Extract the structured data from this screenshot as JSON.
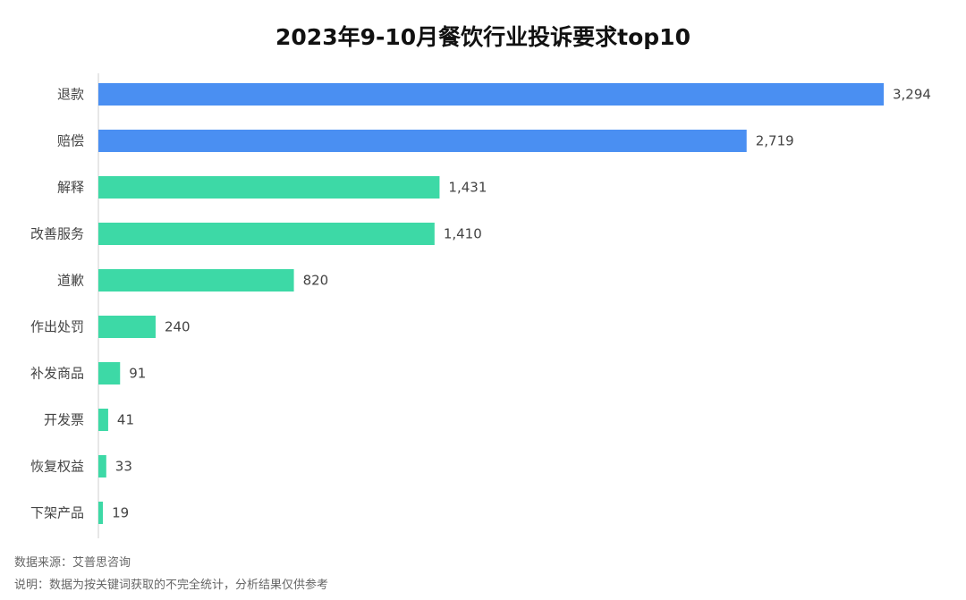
{
  "chart_data": {
    "type": "bar",
    "orientation": "horizontal",
    "title": "2023年9-10月餐饮行业投诉要求top10",
    "categories": [
      "退款",
      "赔偿",
      "解释",
      "改善服务",
      "道歉",
      "作出处罚",
      "补发商品",
      "开发票",
      "恢复权益",
      "下架产品"
    ],
    "values": [
      3294,
      2719,
      1431,
      1410,
      820,
      240,
      91,
      41,
      33,
      19
    ],
    "value_labels": [
      "3,294",
      "2,719",
      "1,431",
      "1,410",
      "820",
      "240",
      "91",
      "41",
      "33",
      "19"
    ],
    "xlim": [
      0,
      3294
    ],
    "grid": false,
    "legend": "none",
    "highlight_count": 2
  },
  "colors": {
    "highlight": "#4a8ff2",
    "normal": "#3dd9a6",
    "axis": "#cfcfcf"
  },
  "footnotes": {
    "source": "数据来源：艾普思咨询",
    "description": "说明：数据为按关键词获取的不完全统计，分析结果仅供参考"
  }
}
